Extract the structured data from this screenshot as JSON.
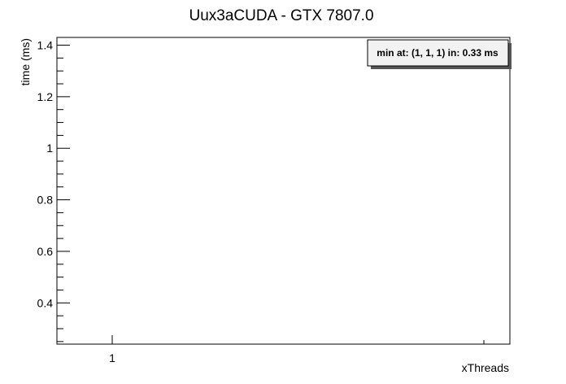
{
  "chart_data": {
    "type": "line",
    "title": "Uux3aCUDA - GTX 7807.0",
    "xlabel": "xThreads",
    "ylabel": "time (ms)",
    "x_ticks": [
      "1"
    ],
    "y_ticks": [
      "0.4",
      "0.6",
      "0.8",
      "1",
      "1.2",
      "1.4"
    ],
    "ylim": [
      0.24,
      1.43
    ],
    "grid": false,
    "series": [],
    "annotation": "min at: (1, 1, 1) in: 0.33 ms"
  }
}
